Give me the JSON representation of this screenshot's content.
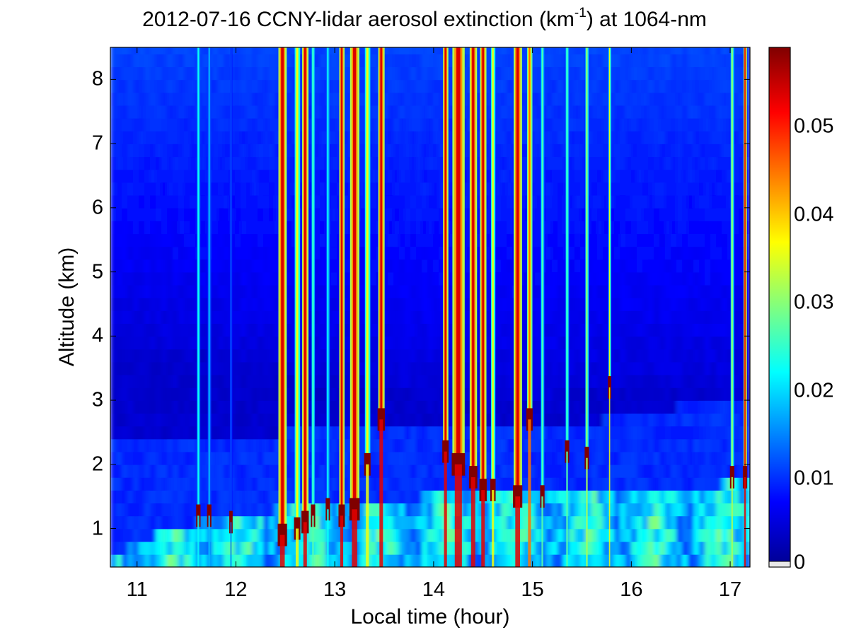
{
  "chart_data": {
    "type": "heatmap",
    "title_main": "2012-07-16 CCNY-lidar aerosol extinction (km",
    "title_sup": "-1",
    "title_tail": ") at 1064-nm",
    "xlabel": "Local time (hour)",
    "ylabel": "Altitude (km)",
    "xlim": [
      10.73,
      17.2
    ],
    "ylim": [
      0.4,
      8.5
    ],
    "xticks": [
      "11",
      "12",
      "13",
      "14",
      "15",
      "16",
      "17"
    ],
    "yticks": [
      "1",
      "2",
      "3",
      "4",
      "5",
      "6",
      "7",
      "8"
    ],
    "colorbar": {
      "colormap": "jet",
      "range": [
        0,
        0.059
      ],
      "ticks": [
        "0",
        "0.01",
        "0.02",
        "0.03",
        "0.04",
        "0.05"
      ]
    },
    "features": {
      "boundary_layer_top_km": [
        {
          "t": 10.73,
          "z": 0.6
        },
        {
          "t": 11.2,
          "z": 0.9
        },
        {
          "t": 11.7,
          "z": 1.15
        },
        {
          "t": 12.4,
          "z": 1.3
        },
        {
          "t": 13.0,
          "z": 1.4
        },
        {
          "t": 13.8,
          "z": 1.45
        },
        {
          "t": 14.1,
          "z": 1.65
        },
        {
          "t": 15.0,
          "z": 1.55
        },
        {
          "t": 15.7,
          "z": 1.5
        },
        {
          "t": 16.3,
          "z": 1.6
        },
        {
          "t": 17.2,
          "z": 1.75
        }
      ],
      "residual_layer_top_km": [
        {
          "t": 10.73,
          "z": 2.35
        },
        {
          "t": 12.5,
          "z": 2.5
        },
        {
          "t": 14.0,
          "z": 2.55
        },
        {
          "t": 15.7,
          "z": 2.7
        },
        {
          "t": 17.2,
          "z": 3.1
        }
      ],
      "elevated_layer_top_km": [
        {
          "t": 10.73,
          "z": 4.0
        },
        {
          "t": 12.0,
          "z": 3.7
        },
        {
          "t": 13.0,
          "z": 3.3
        },
        {
          "t": 15.0,
          "z": 3.0
        },
        {
          "t": 16.0,
          "z": 3.3
        },
        {
          "t": 17.2,
          "z": 3.3
        }
      ],
      "cloud_columns": [
        {
          "t": 11.62,
          "w": 0.03,
          "base_km": 1.2,
          "level": 0.025
        },
        {
          "t": 11.73,
          "w": 0.03,
          "base_km": 1.2,
          "level": 0.02
        },
        {
          "t": 11.95,
          "w": 0.02,
          "base_km": 1.1,
          "level": 0.015
        },
        {
          "t": 12.47,
          "w": 0.08,
          "base_km": 0.9,
          "level": 0.059
        },
        {
          "t": 12.62,
          "w": 0.05,
          "base_km": 1.0,
          "level": 0.04
        },
        {
          "t": 12.7,
          "w": 0.06,
          "base_km": 1.1,
          "level": 0.059
        },
        {
          "t": 12.78,
          "w": 0.03,
          "base_km": 1.2,
          "level": 0.03
        },
        {
          "t": 12.93,
          "w": 0.03,
          "base_km": 1.3,
          "level": 0.025
        },
        {
          "t": 13.07,
          "w": 0.05,
          "base_km": 1.2,
          "level": 0.059
        },
        {
          "t": 13.2,
          "w": 0.09,
          "base_km": 1.3,
          "level": 0.059
        },
        {
          "t": 13.33,
          "w": 0.05,
          "base_km": 2.0,
          "level": 0.04
        },
        {
          "t": 13.47,
          "w": 0.06,
          "base_km": 2.7,
          "level": 0.059
        },
        {
          "t": 14.12,
          "w": 0.05,
          "base_km": 2.2,
          "level": 0.059
        },
        {
          "t": 14.25,
          "w": 0.12,
          "base_km": 2.0,
          "level": 0.059
        },
        {
          "t": 14.4,
          "w": 0.07,
          "base_km": 1.8,
          "level": 0.059
        },
        {
          "t": 14.5,
          "w": 0.06,
          "base_km": 1.6,
          "level": 0.059
        },
        {
          "t": 14.6,
          "w": 0.04,
          "base_km": 1.6,
          "level": 0.04
        },
        {
          "t": 14.85,
          "w": 0.08,
          "base_km": 1.5,
          "level": 0.059
        },
        {
          "t": 14.97,
          "w": 0.05,
          "base_km": 2.7,
          "level": 0.05
        },
        {
          "t": 15.1,
          "w": 0.03,
          "base_km": 1.5,
          "level": 0.03
        },
        {
          "t": 15.35,
          "w": 0.03,
          "base_km": 2.2,
          "level": 0.03
        },
        {
          "t": 15.55,
          "w": 0.03,
          "base_km": 2.1,
          "level": 0.035
        },
        {
          "t": 15.78,
          "w": 0.02,
          "base_km": 3.2,
          "level": 0.04
        },
        {
          "t": 17.02,
          "w": 0.03,
          "base_km": 1.8,
          "level": 0.035
        },
        {
          "t": 17.15,
          "w": 0.03,
          "base_km": 1.8,
          "level": 0.059
        }
      ]
    }
  }
}
